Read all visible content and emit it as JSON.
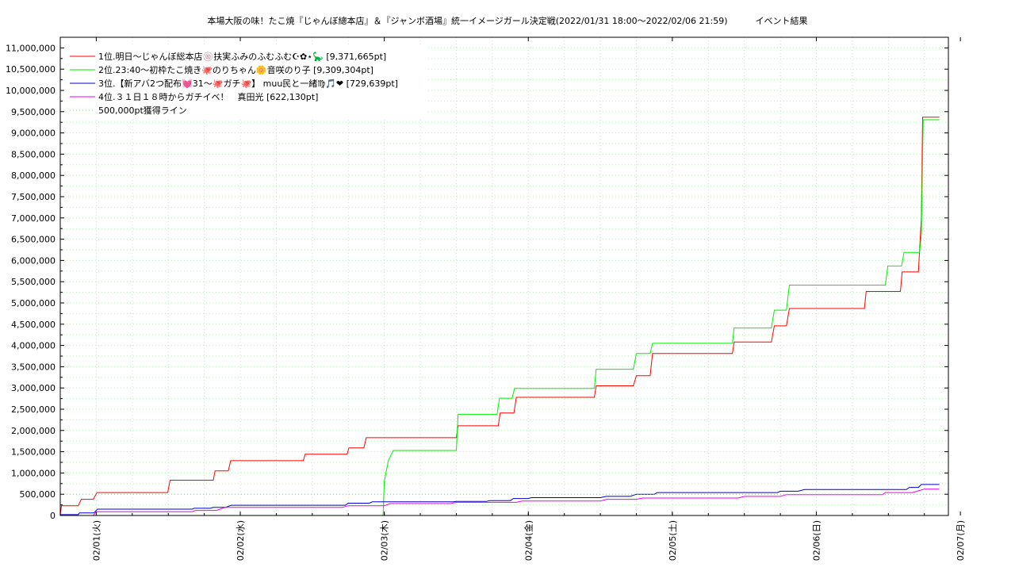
{
  "chart_data": {
    "type": "line",
    "title": "本場大阪の味！たこ焼『じゃんぼ總本店』＆『ジャンボ酒場』統一イメージガール決定戦(2022/01/31 18:00～2022/02/06 21:59)          イベント結果",
    "xlabel": "",
    "ylabel": "",
    "x_range_hours": [
      0,
      148
    ],
    "x_ticks": [
      {
        "t": 6,
        "label": "02/01(火)"
      },
      {
        "t": 30,
        "label": "02/02(水)"
      },
      {
        "t": 54,
        "label": "02/03(木)"
      },
      {
        "t": 78,
        "label": "02/04(金)"
      },
      {
        "t": 102,
        "label": "02/05(土)"
      },
      {
        "t": 126,
        "label": "02/06(日)"
      },
      {
        "t": 150,
        "label": "02/07(月)"
      }
    ],
    "ylim": [
      0,
      11250000
    ],
    "y_ticks": [
      {
        "v": 0,
        "label": "0"
      },
      {
        "v": 500000,
        "label": "500,000"
      },
      {
        "v": 1000000,
        "label": "1,000,000"
      },
      {
        "v": 1500000,
        "label": "1,500,000"
      },
      {
        "v": 2000000,
        "label": "2,000,000"
      },
      {
        "v": 2500000,
        "label": "2,500,000"
      },
      {
        "v": 3000000,
        "label": "3,000,000"
      },
      {
        "v": 3500000,
        "label": "3,500,000"
      },
      {
        "v": 4000000,
        "label": "4,000,000"
      },
      {
        "v": 4500000,
        "label": "4,500,000"
      },
      {
        "v": 5000000,
        "label": "5,000,000"
      },
      {
        "v": 5500000,
        "label": "5,500,000"
      },
      {
        "v": 6000000,
        "label": "6,000,000"
      },
      {
        "v": 6500000,
        "label": "6,500,000"
      },
      {
        "v": 7000000,
        "label": "7,000,000"
      },
      {
        "v": 7500000,
        "label": "7,500,000"
      },
      {
        "v": 8000000,
        "label": "8,000,000"
      },
      {
        "v": 8500000,
        "label": "8,500,000"
      },
      {
        "v": 9000000,
        "label": "9,000,000"
      },
      {
        "v": 9500000,
        "label": "9,500,000"
      },
      {
        "v": 10000000,
        "label": "10,000,000"
      },
      {
        "v": 10500000,
        "label": "10,500,000"
      },
      {
        "v": 11000000,
        "label": "11,000,000"
      }
    ],
    "grid": true,
    "legend_position": "top-left",
    "series": [
      {
        "name": "1位.明日〜じゃんぼ総本店🍥扶実ふみのふむふむ☪✿⋆🦕 [9,371,665pt]",
        "color": "#ff0000",
        "points": [
          [
            0,
            0
          ],
          [
            0.2,
            230000
          ],
          [
            3,
            230000
          ],
          [
            3.5,
            380000
          ],
          [
            5.5,
            380000
          ],
          [
            6.1,
            540000
          ],
          [
            17.9,
            540000
          ],
          [
            18.3,
            830000
          ],
          [
            25.5,
            830000
          ],
          [
            25.8,
            1050000
          ],
          [
            28,
            1050000
          ],
          [
            28.4,
            1290000
          ],
          [
            40.5,
            1290000
          ],
          [
            40.8,
            1440000
          ],
          [
            47.8,
            1440000
          ],
          [
            48.1,
            1590000
          ],
          [
            50.6,
            1590000
          ],
          [
            51,
            1830000
          ],
          [
            66,
            1830000
          ],
          [
            66.3,
            2110000
          ],
          [
            73,
            2110000
          ],
          [
            73.3,
            2410000
          ],
          [
            75.6,
            2410000
          ],
          [
            76,
            2780000
          ],
          [
            89,
            2780000
          ],
          [
            89.3,
            3050000
          ],
          [
            95.5,
            3050000
          ],
          [
            96,
            3290000
          ],
          [
            98.3,
            3290000
          ],
          [
            98.7,
            3810000
          ],
          [
            112,
            3810000
          ],
          [
            112.3,
            4080000
          ],
          [
            118.5,
            4080000
          ],
          [
            119,
            4460000
          ],
          [
            121,
            4460000
          ],
          [
            121.5,
            4870000
          ],
          [
            134,
            4870000
          ],
          [
            134.3,
            5270000
          ],
          [
            140,
            5270000
          ],
          [
            140.3,
            5730000
          ],
          [
            143,
            5730000
          ],
          [
            143.5,
            7000000
          ],
          [
            143.7,
            9371665
          ],
          [
            146.5,
            9371665
          ]
        ]
      },
      {
        "name": "2位.23:40〜初枠たこ焼き🐙のりちゃん🌼音咲のり子 [9,309,304pt]",
        "color": "#00ee00",
        "points": [
          [
            53.8,
            0
          ],
          [
            54,
            800000
          ],
          [
            54.7,
            1300000
          ],
          [
            55.5,
            1530000
          ],
          [
            66,
            1530000
          ],
          [
            66.3,
            2380000
          ],
          [
            72.8,
            2380000
          ],
          [
            73.2,
            2760000
          ],
          [
            75.3,
            2760000
          ],
          [
            75.7,
            2990000
          ],
          [
            89,
            2990000
          ],
          [
            89.3,
            3440000
          ],
          [
            95.5,
            3440000
          ],
          [
            96,
            3810000
          ],
          [
            98.3,
            3810000
          ],
          [
            98.7,
            4050000
          ],
          [
            112,
            4050000
          ],
          [
            112.3,
            4410000
          ],
          [
            118.5,
            4410000
          ],
          [
            119,
            4830000
          ],
          [
            121,
            4830000
          ],
          [
            121.5,
            5420000
          ],
          [
            137.5,
            5420000
          ],
          [
            137.9,
            5870000
          ],
          [
            140.2,
            5870000
          ],
          [
            140.6,
            6190000
          ],
          [
            143.2,
            6190000
          ],
          [
            143.5,
            6600000
          ],
          [
            143.8,
            9309304
          ],
          [
            146.5,
            9309304
          ]
        ]
      },
      {
        "name": "3位.【新アバ2つ配布💓31〜🐙ガチ🐙】 muu民と一緒♍🎵❤ [729,639pt]",
        "color": "#0000cc",
        "points": [
          [
            0,
            20000
          ],
          [
            3,
            20000
          ],
          [
            3.2,
            60000
          ],
          [
            5.6,
            60000
          ],
          [
            6.2,
            150000
          ],
          [
            22,
            150000
          ],
          [
            22.3,
            170000
          ],
          [
            25,
            170000
          ],
          [
            25.5,
            190000
          ],
          [
            27.5,
            190000
          ],
          [
            28.5,
            240000
          ],
          [
            47.5,
            240000
          ],
          [
            48,
            290000
          ],
          [
            51.5,
            290000
          ],
          [
            52,
            320000
          ],
          [
            65.5,
            320000
          ],
          [
            66,
            330000
          ],
          [
            71,
            330000
          ],
          [
            71.5,
            350000
          ],
          [
            75,
            350000
          ],
          [
            75.5,
            400000
          ],
          [
            78,
            400000
          ],
          [
            78.5,
            420000
          ],
          [
            90,
            420000
          ],
          [
            91,
            450000
          ],
          [
            95,
            450000
          ],
          [
            96,
            500000
          ],
          [
            99,
            500000
          ],
          [
            99.5,
            540000
          ],
          [
            119.5,
            540000
          ],
          [
            120,
            570000
          ],
          [
            123,
            570000
          ],
          [
            124,
            610000
          ],
          [
            130,
            610000
          ],
          [
            141,
            610000
          ],
          [
            141.5,
            660000
          ],
          [
            143,
            660000
          ],
          [
            143.5,
            729639
          ],
          [
            146.5,
            729639
          ]
        ]
      },
      {
        "name": "4位.３１日１８時からガチイベ！　真田光 [622,130pt]",
        "color": "#ee00ee",
        "points": [
          [
            0,
            0
          ],
          [
            5.5,
            0
          ],
          [
            6,
            90000
          ],
          [
            22,
            90000
          ],
          [
            22.5,
            120000
          ],
          [
            26,
            120000
          ],
          [
            27.5,
            190000
          ],
          [
            47,
            190000
          ],
          [
            48,
            230000
          ],
          [
            54,
            230000
          ],
          [
            55,
            280000
          ],
          [
            65,
            280000
          ],
          [
            66,
            310000
          ],
          [
            76,
            310000
          ],
          [
            77,
            340000
          ],
          [
            90,
            340000
          ],
          [
            91,
            380000
          ],
          [
            96,
            380000
          ],
          [
            97,
            410000
          ],
          [
            113,
            410000
          ],
          [
            114,
            450000
          ],
          [
            120,
            450000
          ],
          [
            121,
            490000
          ],
          [
            137,
            490000
          ],
          [
            137.5,
            540000
          ],
          [
            142,
            540000
          ],
          [
            143,
            580000
          ],
          [
            144,
            622130
          ],
          [
            146.5,
            622130
          ]
        ]
      },
      {
        "name": "500,000pt獲得ライン",
        "color": "#88cc88",
        "dotted": true,
        "points": [
          [
            0,
            500000
          ],
          [
            146.5,
            500000
          ]
        ]
      }
    ]
  }
}
